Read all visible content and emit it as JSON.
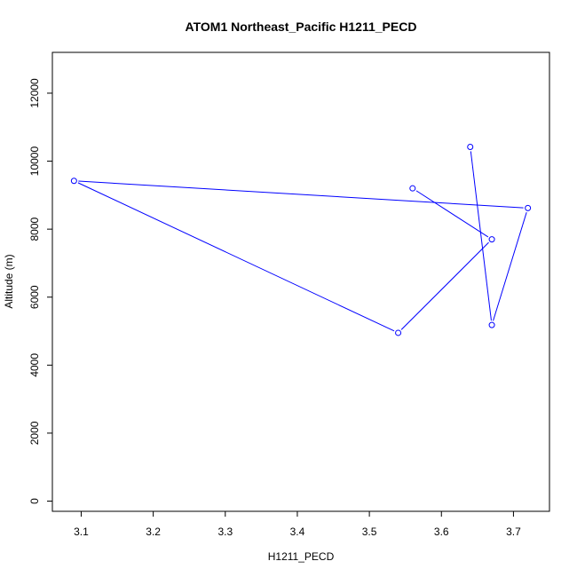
{
  "chart_data": {
    "type": "line",
    "title": "ATOM1 Northeast_Pacific H1211_PECD",
    "xlabel": "H1211_PECD",
    "ylabel": "Altitude (m)",
    "xlim": [
      3.06,
      3.75
    ],
    "ylim": [
      -300,
      13200
    ],
    "x_ticks": [
      3.1,
      3.2,
      3.3,
      3.4,
      3.5,
      3.6,
      3.7
    ],
    "x_tick_labels": [
      "3.1",
      "3.2",
      "3.3",
      "3.4",
      "3.5",
      "3.6",
      "3.7"
    ],
    "y_ticks": [
      0,
      2000,
      4000,
      6000,
      8000,
      10000,
      12000
    ],
    "y_tick_labels": [
      "0",
      "2000",
      "4000",
      "6000",
      "8000",
      "10000",
      "12000"
    ],
    "grid": false,
    "series": [
      {
        "color": "#0000ff",
        "marker": "open-circle",
        "points": [
          {
            "x": 3.56,
            "y": 9200
          },
          {
            "x": 3.67,
            "y": 7700
          },
          {
            "x": 3.54,
            "y": 4950
          },
          {
            "x": 3.09,
            "y": 9420
          },
          {
            "x": 3.72,
            "y": 8620
          },
          {
            "x": 3.67,
            "y": 5180
          },
          {
            "x": 3.64,
            "y": 10420
          }
        ]
      }
    ]
  }
}
